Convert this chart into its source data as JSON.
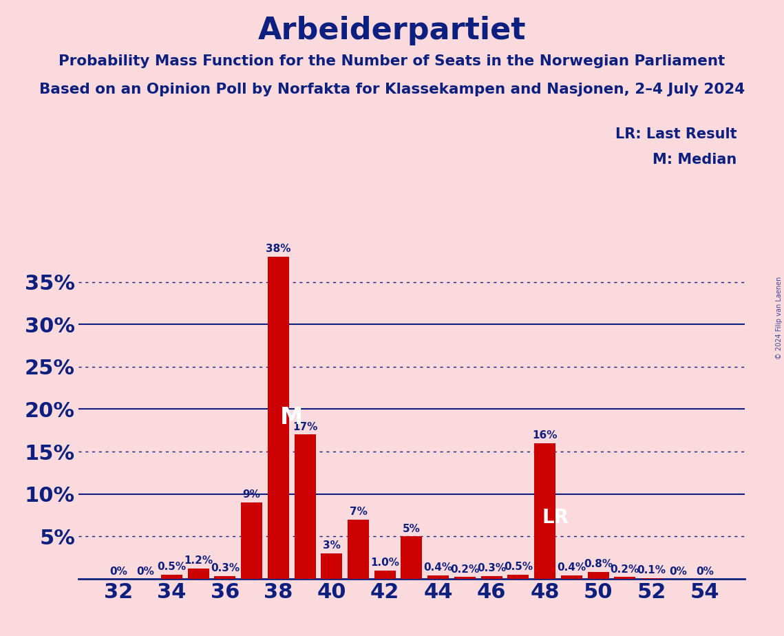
{
  "title": "Arbeiderpartiet",
  "subtitle1": "Probability Mass Function for the Number of Seats in the Norwegian Parliament",
  "subtitle2": "Based on an Opinion Poll by Norfakta for Klassekampen and Nasjonen, 2–4 July 2024",
  "watermark": "© 2024 Filip van Laenen",
  "legend_lr": "LR: Last Result",
  "legend_m": "M: Median",
  "seats": [
    32,
    33,
    34,
    35,
    36,
    37,
    38,
    39,
    40,
    41,
    42,
    43,
    44,
    45,
    46,
    47,
    48,
    49,
    50,
    51,
    52,
    53,
    54
  ],
  "values": [
    0.0,
    0.0,
    0.5,
    1.2,
    0.3,
    9.0,
    38.0,
    17.0,
    3.0,
    7.0,
    1.0,
    5.0,
    0.4,
    0.2,
    0.3,
    0.5,
    16.0,
    0.4,
    0.8,
    0.2,
    0.1,
    0.0,
    0.0
  ],
  "labels": [
    "0%",
    "0%",
    "0.5%",
    "1.2%",
    "0.3%",
    "9%",
    "38%",
    "17%",
    "3%",
    "7%",
    "1.0%",
    "5%",
    "0.4%",
    "0.2%",
    "0.3%",
    "0.5%",
    "16%",
    "0.4%",
    "0.8%",
    "0.2%",
    "0.1%",
    "0%",
    "0%"
  ],
  "bar_color": "#CC0000",
  "median_seat": 38,
  "lr_seat": 48,
  "background_color": "#FADADD",
  "text_color": "#0D2080",
  "title_fontsize": 32,
  "subtitle_fontsize": 15.5,
  "axis_label_fontsize": 22,
  "bar_label_fontsize": 11,
  "ytick_values": [
    0,
    5,
    10,
    15,
    20,
    25,
    30,
    35
  ],
  "ytick_labels": [
    "",
    "5%",
    "10%",
    "15%",
    "20%",
    "25%",
    "30%",
    "35%"
  ],
  "solid_yticks": [
    10,
    20,
    30
  ],
  "dotted_yticks": [
    5,
    15,
    25,
    35
  ],
  "ylim": [
    0,
    42
  ],
  "xlim_left": 30.5,
  "xlim_right": 55.5
}
